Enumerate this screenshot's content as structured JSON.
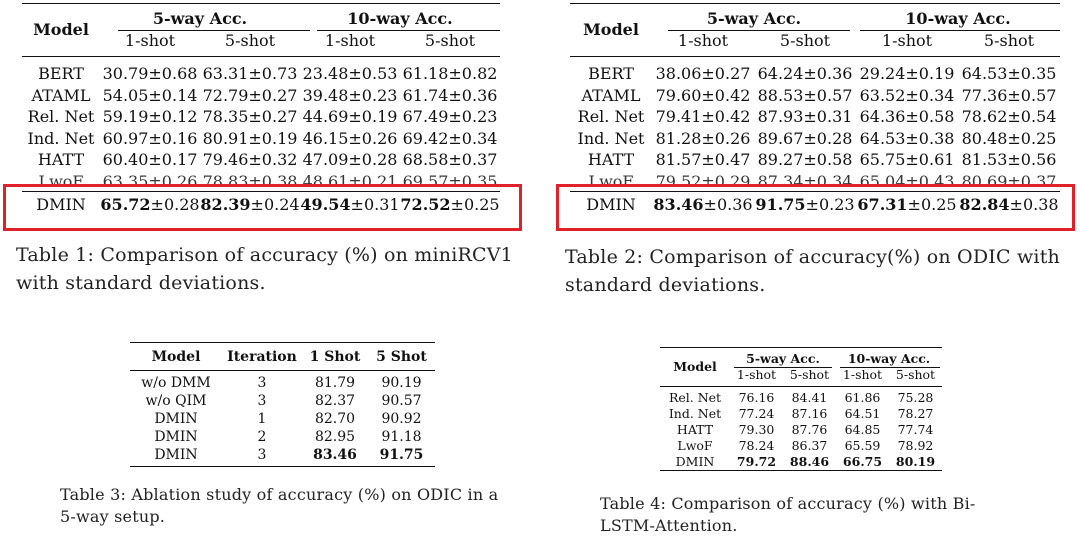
{
  "table1": {
    "header_model": "Model",
    "group1": "5-way Acc.",
    "group2": "10-way Acc.",
    "sub": [
      "1-shot",
      "5-shot",
      "1-shot",
      "5-shot"
    ],
    "rows": [
      {
        "model": "BERT",
        "cells": [
          "30.79",
          "±0.68",
          "63.31",
          "±0.73",
          "23.48",
          "±0.53",
          "61.18",
          "±0.82"
        ]
      },
      {
        "model": "ATAML",
        "cells": [
          "54.05",
          "±0.14",
          "72.79",
          "±0.27",
          "39.48",
          "±0.23",
          "61.74",
          "±0.36"
        ]
      },
      {
        "model": "Rel. Net",
        "cells": [
          "59.19",
          "±0.12",
          "78.35",
          "±0.27",
          "44.69",
          "±0.19",
          "67.49",
          "±0.23"
        ]
      },
      {
        "model": "Ind. Net",
        "cells": [
          "60.97",
          "±0.16",
          "80.91",
          "±0.19",
          "46.15",
          "±0.26",
          "69.42",
          "±0.34"
        ]
      },
      {
        "model": "HATT",
        "cells": [
          "60.40",
          "±0.17",
          "79.46",
          "±0.32",
          "47.09",
          "±0.28",
          "68.58",
          "±0.37"
        ]
      },
      {
        "model": "LwoF",
        "cells": [
          "63.35",
          "±0.26",
          "78.83",
          "±0.38",
          "48.61",
          "±0.21",
          "69.57",
          "±0.35"
        ]
      }
    ],
    "dmin": {
      "model": "DMIN",
      "cells": [
        "65.72",
        "±0.28",
        "82.39",
        "±0.24",
        "49.54",
        "±0.31",
        "72.52",
        "±0.25"
      ]
    },
    "caption": "Table 1:  Comparison of accuracy (%) on miniRCV1 with standard deviations."
  },
  "table2": {
    "header_model": "Model",
    "group1": "5-way Acc.",
    "group2": "10-way Acc.",
    "sub": [
      "1-shot",
      "5-shot",
      "1-shot",
      "5-shot"
    ],
    "rows": [
      {
        "model": "BERT",
        "cells": [
          "38.06",
          "±0.27",
          "64.24",
          "±0.36",
          "29.24",
          "±0.19",
          "64.53",
          "±0.35"
        ]
      },
      {
        "model": "ATAML",
        "cells": [
          "79.60",
          "±0.42",
          "88.53",
          "±0.57",
          "63.52",
          "±0.34",
          "77.36",
          "±0.57"
        ]
      },
      {
        "model": "Rel. Net",
        "cells": [
          "79.41",
          "±0.42",
          "87.93",
          "±0.31",
          "64.36",
          "±0.58",
          "78.62",
          "±0.54"
        ]
      },
      {
        "model": "Ind. Net",
        "cells": [
          "81.28",
          "±0.26",
          "89.67",
          "±0.28",
          "64.53",
          "±0.38",
          "80.48",
          "±0.25"
        ]
      },
      {
        "model": "HATT",
        "cells": [
          "81.57",
          "±0.47",
          "89.27",
          "±0.58",
          "65.75",
          "±0.61",
          "81.53",
          "±0.56"
        ]
      },
      {
        "model": "LwoF",
        "cells": [
          "79.52",
          "±0.29",
          "87.34",
          "±0.34",
          "65.04",
          "±0.43",
          "80.69",
          "±0.37"
        ]
      }
    ],
    "dmin": {
      "model": "DMIN",
      "cells": [
        "83.46",
        "±0.36",
        "91.75",
        "±0.23",
        "67.31",
        "±0.25",
        "82.84",
        "±0.38"
      ]
    },
    "caption": "Table 2:  Comparison of accuracy(%) on ODIC with standard deviations."
  },
  "table3": {
    "headers": [
      "Model",
      "Iteration",
      "1 Shot",
      "5 Shot"
    ],
    "rows": [
      [
        "w/o DMM",
        "3",
        "81.79",
        "90.19"
      ],
      [
        "w/o QIM",
        "3",
        "82.37",
        "90.57"
      ],
      [
        "DMIN",
        "1",
        "82.70",
        "90.92"
      ],
      [
        "DMIN",
        "2",
        "82.95",
        "91.18"
      ],
      [
        "DMIN",
        "3",
        "83.46",
        "91.75"
      ]
    ],
    "caption": "Table 3: Ablation study of accuracy (%) on ODIC in a 5-way setup."
  },
  "table4": {
    "header_model": "Model",
    "group1": "5-way Acc.",
    "group2": "10-way Acc.",
    "sub": [
      "1-shot",
      "5-shot",
      "1-shot",
      "5-shot"
    ],
    "rows": [
      [
        "Rel. Net",
        "76.16",
        "84.41",
        "61.86",
        "75.28"
      ],
      [
        "Ind. Net",
        "77.24",
        "87.16",
        "64.51",
        "78.27"
      ],
      [
        "HATT",
        "79.30",
        "87.76",
        "64.85",
        "77.74"
      ],
      [
        "LwoF",
        "78.24",
        "86.37",
        "65.59",
        "78.92"
      ],
      [
        "DMIN",
        "79.72",
        "88.46",
        "66.75",
        "80.19"
      ]
    ],
    "caption": "Table 4: Comparison of accuracy (%) with Bi-LSTM-Attention."
  }
}
